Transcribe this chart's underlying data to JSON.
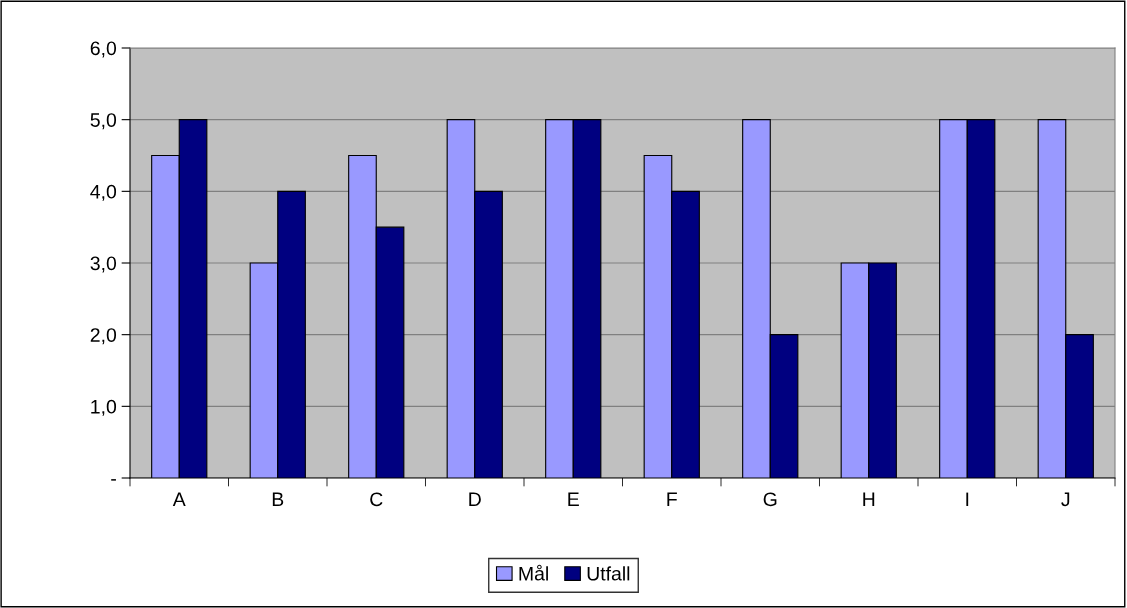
{
  "chart_data": {
    "type": "bar",
    "categories": [
      "A",
      "B",
      "C",
      "D",
      "E",
      "F",
      "G",
      "H",
      "I",
      "J"
    ],
    "series": [
      {
        "name": "Mål",
        "color": "#9999ff",
        "values": [
          4.5,
          3,
          4.5,
          5,
          5,
          4.5,
          5,
          3,
          5,
          5
        ]
      },
      {
        "name": "Utfall",
        "color": "#000080",
        "values": [
          5,
          4,
          3.5,
          4,
          5,
          4,
          2,
          3,
          5,
          2
        ]
      }
    ],
    "ylim": [
      0,
      6
    ],
    "yticks": [
      {
        "value": 0,
        "label": "-"
      },
      {
        "value": 1,
        "label": "1,0"
      },
      {
        "value": 2,
        "label": "2,0"
      },
      {
        "value": 3,
        "label": "3,0"
      },
      {
        "value": 4,
        "label": "4,0"
      },
      {
        "value": 5,
        "label": "5,0"
      },
      {
        "value": 6,
        "label": "6,0"
      }
    ],
    "grid": "y",
    "legend": "bottom"
  }
}
